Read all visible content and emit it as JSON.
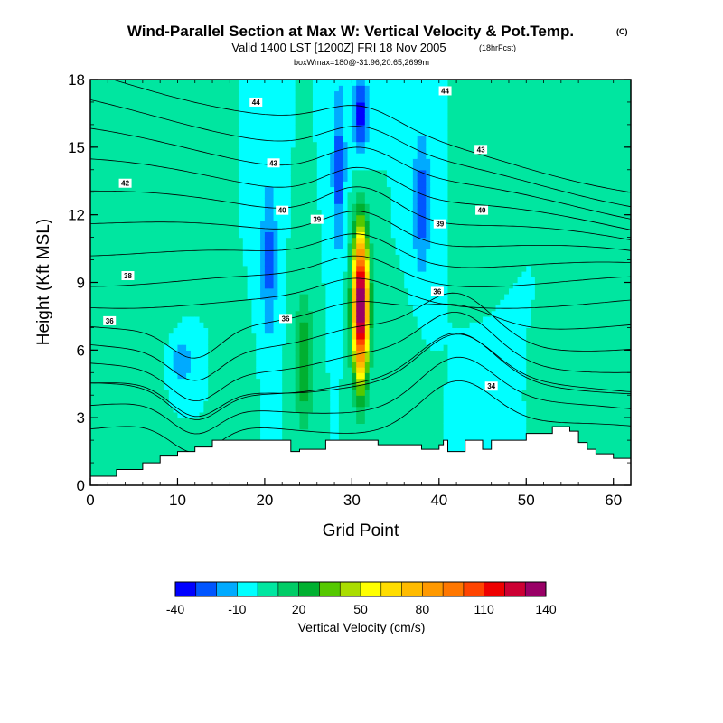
{
  "chart_data": {
    "type": "heatmap",
    "title": "Wind-Parallel Section at Max W: Vertical Velocity & Pot.Temp.",
    "title_mark": "(C)",
    "subtitle": "Valid 1400 LST [1200Z] FRI 18 Nov 2005",
    "subtitle_note": "(18hrFcst)",
    "subtitle2": "boxWmax=180@-31.96,20.65,2699m",
    "xlabel": "Grid Point",
    "ylabel": "Height (Kft MSL)",
    "xlim": [
      0,
      62
    ],
    "ylim": [
      0,
      18
    ],
    "x_ticks": [
      "0",
      "10",
      "20",
      "30",
      "40",
      "50",
      "60"
    ],
    "y_ticks": [
      "0",
      "3",
      "6",
      "9",
      "12",
      "15",
      "18"
    ],
    "colorbar": {
      "label": "Vertical Velocity (cm/s)",
      "tick_labels": [
        "-40",
        "-10",
        "20",
        "50",
        "80",
        "110",
        "140"
      ],
      "levels": [
        -40,
        -30,
        -20,
        -10,
        0,
        10,
        20,
        30,
        40,
        50,
        60,
        70,
        80,
        90,
        100,
        110,
        120,
        130,
        140
      ],
      "colors": [
        "#0000ff",
        "#0055ff",
        "#00aaff",
        "#00ffff",
        "#00e6a0",
        "#00cc66",
        "#00b030",
        "#55c800",
        "#aadd00",
        "#ffff00",
        "#ffdd00",
        "#ffbb00",
        "#ff9900",
        "#ff7700",
        "#ff4400",
        "#ee0000",
        "#cc0033",
        "#990066"
      ]
    },
    "w_features": [
      {
        "x": 31,
        "z": 8,
        "sx": 0.9,
        "sz": 3.2,
        "w": 150
      },
      {
        "x": 24.5,
        "z": 5.5,
        "sx": 1.0,
        "sz": 3.0,
        "w": 30
      },
      {
        "x": 17,
        "z": 4,
        "sx": 1.3,
        "sz": 2.0,
        "w": 10
      },
      {
        "x": 6,
        "z": 10,
        "sx": 3.0,
        "sz": 4.0,
        "w": 8
      },
      {
        "x": 20.5,
        "z": 10,
        "sx": 0.9,
        "sz": 3.5,
        "w": -25
      },
      {
        "x": 28.5,
        "z": 14,
        "sx": 0.8,
        "sz": 4.0,
        "w": -25
      },
      {
        "x": 38,
        "z": 12.5,
        "sx": 1.0,
        "sz": 3.0,
        "w": -28
      },
      {
        "x": 10.5,
        "z": 5.5,
        "sx": 1.2,
        "sz": 1.0,
        "w": -20
      },
      {
        "x": 31,
        "z": 16.5,
        "sx": 0.9,
        "sz": 1.8,
        "w": -35
      },
      {
        "x": 36,
        "z": 5,
        "sx": 1.5,
        "sz": 2.0,
        "w": 8
      },
      {
        "x": 45,
        "z": 13,
        "sx": 1.5,
        "sz": 2.5,
        "w": 10
      },
      {
        "x": 57,
        "z": 10,
        "sx": 1.8,
        "sz": 4.0,
        "w": 6
      },
      {
        "x": 53,
        "z": 4,
        "sx": 2.5,
        "sz": 1.5,
        "w": 5
      },
      {
        "x": 47,
        "z": 4,
        "sx": 2.0,
        "sz": 1.8,
        "w": -6
      }
    ],
    "terrain": [
      [
        0,
        0.4
      ],
      [
        3,
        0.7
      ],
      [
        6,
        1.0
      ],
      [
        8,
        1.3
      ],
      [
        10,
        1.5
      ],
      [
        12,
        1.7
      ],
      [
        14,
        2.0
      ],
      [
        22,
        2.0
      ],
      [
        23,
        1.5
      ],
      [
        24,
        1.6
      ],
      [
        27,
        2.0
      ],
      [
        30,
        2.0
      ],
      [
        33,
        1.8
      ],
      [
        36,
        1.8
      ],
      [
        38,
        1.6
      ],
      [
        40,
        1.8
      ],
      [
        40.5,
        2.0
      ],
      [
        41,
        1.5
      ],
      [
        43,
        2.0
      ],
      [
        44,
        2.0
      ],
      [
        45,
        1.6
      ],
      [
        46,
        2.0
      ],
      [
        50,
        2.3
      ],
      [
        53,
        2.6
      ],
      [
        55,
        2.4
      ],
      [
        56,
        1.9
      ],
      [
        57,
        1.6
      ],
      [
        58,
        1.4
      ],
      [
        60,
        1.2
      ],
      [
        62,
        1.0
      ]
    ],
    "isentrope_labels": [
      {
        "text": "44",
        "x": 19.0,
        "y": 17.0
      },
      {
        "text": "44",
        "x": 40.7,
        "y": 17.5
      },
      {
        "text": "43",
        "x": 21.0,
        "y": 14.3
      },
      {
        "text": "43",
        "x": 44.8,
        "y": 14.9
      },
      {
        "text": "42",
        "x": 4.0,
        "y": 13.4
      },
      {
        "text": "40",
        "x": 22.0,
        "y": 12.2
      },
      {
        "text": "40",
        "x": 44.9,
        "y": 12.2
      },
      {
        "text": "39",
        "x": 26.0,
        "y": 11.8
      },
      {
        "text": "39",
        "x": 40.1,
        "y": 11.6
      },
      {
        "text": "38",
        "x": 4.3,
        "y": 9.3
      },
      {
        "text": "36",
        "x": 39.8,
        "y": 8.6
      },
      {
        "text": "36",
        "x": 22.4,
        "y": 7.4
      },
      {
        "text": "36",
        "x": 2.2,
        "y": 7.3
      },
      {
        "text": "34",
        "x": 46.0,
        "y": 4.4
      }
    ]
  }
}
